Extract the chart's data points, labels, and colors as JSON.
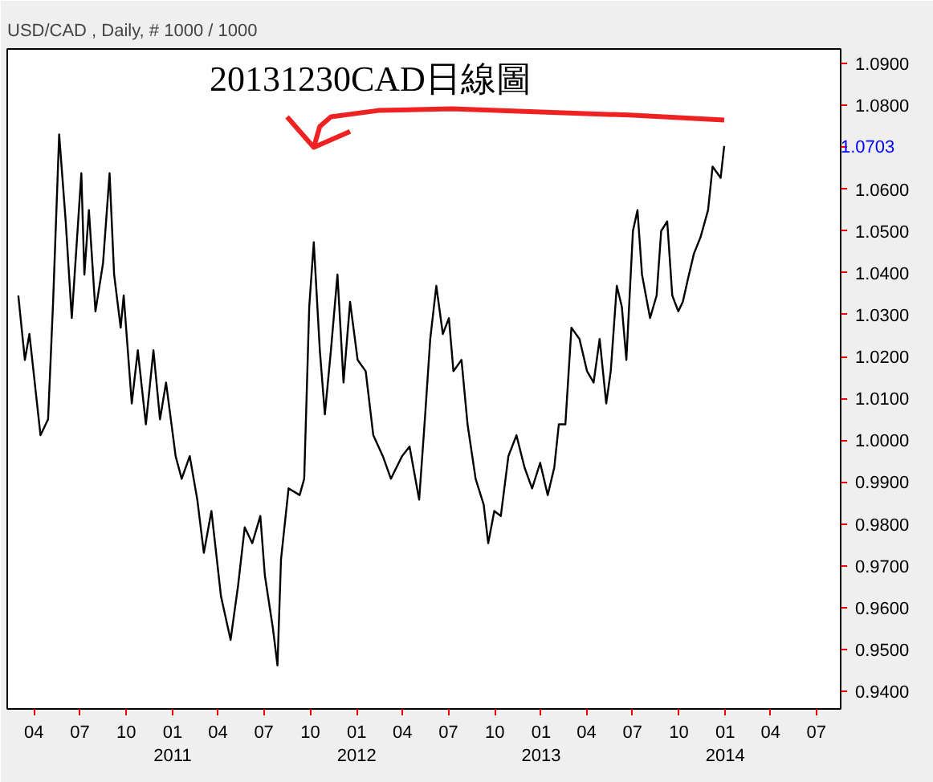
{
  "chart_data": {
    "type": "line",
    "title": "USD/CAD , Daily, # 1000 / 1000",
    "annotations": [
      "20131230CAD日線圖",
      "1.0703"
    ],
    "series": [
      {
        "color": "#000000",
        "x": [
          "2010-03-01",
          "2010-03-14",
          "2010-03-23",
          "2010-04-14",
          "2010-04-29",
          "2010-05-09",
          "2010-05-21",
          "2010-06-03",
          "2010-06-15",
          "2010-07-04",
          "2010-07-10",
          "2010-07-19",
          "2010-08-01",
          "2010-08-16",
          "2010-08-29",
          "2010-09-07",
          "2010-09-20",
          "2010-09-26",
          "2010-10-12",
          "2010-10-24",
          "2010-11-09",
          "2010-11-24",
          "2010-12-07",
          "2010-12-19",
          "2011-01-07",
          "2011-01-19",
          "2011-02-04",
          "2011-02-19",
          "2011-03-04",
          "2011-03-19",
          "2011-04-07",
          "2011-04-26",
          "2011-05-11",
          "2011-05-24",
          "2011-06-08",
          "2011-06-24",
          "2011-07-03",
          "2011-07-19",
          "2011-07-28",
          "2011-08-04",
          "2011-08-19",
          "2011-09-10",
          "2011-09-19",
          "2011-09-29",
          "2011-10-08",
          "2011-10-20",
          "2011-10-30",
          "2011-11-11",
          "2011-11-24",
          "2011-12-06",
          "2011-12-19",
          "2012-01-03",
          "2012-01-19",
          "2012-02-03",
          "2012-02-22",
          "2012-03-09",
          "2012-03-31",
          "2012-04-15",
          "2012-05-04",
          "2012-05-16",
          "2012-05-26",
          "2012-06-07",
          "2012-06-20",
          "2012-07-02",
          "2012-07-11",
          "2012-07-27",
          "2012-08-08",
          "2012-08-24",
          "2012-09-09",
          "2012-09-18",
          "2012-09-30",
          "2012-10-13",
          "2012-10-28",
          "2012-11-13",
          "2012-11-29",
          "2012-12-14",
          "2012-12-30",
          "2013-01-14",
          "2013-01-27",
          "2013-02-05",
          "2013-02-18",
          "2013-03-02",
          "2013-03-18",
          "2013-04-02",
          "2013-04-15",
          "2013-04-27",
          "2013-05-10",
          "2013-05-19",
          "2013-05-31",
          "2013-06-10",
          "2013-06-19",
          "2013-07-02",
          "2013-07-11",
          "2013-07-20",
          "2013-08-05",
          "2013-08-18",
          "2013-08-27",
          "2013-09-08",
          "2013-09-18",
          "2013-09-30",
          "2013-10-09",
          "2013-10-19",
          "2013-10-31",
          "2013-11-13",
          "2013-11-28",
          "2013-12-07",
          "2013-12-23",
          "2013-12-30"
        ],
        "values": [
          1.0346,
          1.0192,
          1.0254,
          1.0012,
          1.005,
          1.0331,
          1.0731,
          1.0523,
          1.0292,
          1.0638,
          1.0396,
          1.055,
          1.0308,
          1.0423,
          1.0638,
          1.0396,
          1.0269,
          1.0346,
          1.0088,
          1.0215,
          1.0038,
          1.0215,
          1.005,
          1.0138,
          0.9962,
          0.9908,
          0.9962,
          0.9858,
          0.9731,
          0.9831,
          0.9627,
          0.9523,
          0.9654,
          0.9792,
          0.9754,
          0.9819,
          0.9677,
          0.955,
          0.9462,
          0.9715,
          0.9885,
          0.9869,
          0.9908,
          1.0319,
          1.0473,
          1.0215,
          1.0062,
          1.0215,
          1.0396,
          1.0138,
          1.0331,
          1.0192,
          1.0165,
          1.0012,
          0.9962,
          0.9908,
          0.9962,
          0.9985,
          0.9858,
          1.0062,
          1.0242,
          1.0369,
          1.0254,
          1.0292,
          1.0165,
          1.0192,
          1.0038,
          0.9908,
          0.9846,
          0.9754,
          0.9831,
          0.9819,
          0.9962,
          1.0012,
          0.9935,
          0.9885,
          0.9946,
          0.9869,
          0.9935,
          1.0038,
          1.0038,
          1.0269,
          1.0242,
          1.0165,
          1.0138,
          1.0242,
          1.0088,
          1.0165,
          1.0369,
          1.0319,
          1.0192,
          1.05,
          1.055,
          1.0396,
          1.0292,
          1.0346,
          1.05,
          1.0523,
          1.0346,
          1.0308,
          1.0331,
          1.0385,
          1.0446,
          1.0485,
          1.055,
          1.0654,
          1.0627,
          1.0703
        ]
      },
      {
        "color": "#ee2222",
        "x": [
          "2011-10-08",
          "2011-10-20",
          "2011-11-11",
          "2012-02-13",
          "2012-07-08",
          "2012-12-20",
          "2013-06-25",
          "2013-12-30"
        ],
        "values": [
          1.07,
          1.075,
          1.0773,
          1.0788,
          1.0792,
          1.0785,
          1.0777,
          1.0765
        ]
      },
      {
        "color": "#ee2222",
        "x": [
          "2011-08-16",
          "2011-10-08",
          "2011-12-19"
        ],
        "values": [
          1.0773,
          1.07,
          1.0738
        ]
      }
    ],
    "xlim": [
      "2010-02-07",
      "2014-08-18"
    ],
    "xticks": [
      {
        "value": "2010-04-01",
        "label": "04"
      },
      {
        "value": "2010-07-01",
        "label": "07"
      },
      {
        "value": "2010-10-01",
        "label": "10"
      },
      {
        "value": "2011-01-01",
        "label": "01\n2011"
      },
      {
        "value": "2011-04-01",
        "label": "04"
      },
      {
        "value": "2011-07-01",
        "label": "07"
      },
      {
        "value": "2011-10-01",
        "label": "10"
      },
      {
        "value": "2012-01-01",
        "label": "01\n2012"
      },
      {
        "value": "2012-04-01",
        "label": "04"
      },
      {
        "value": "2012-07-01",
        "label": "07"
      },
      {
        "value": "2012-10-01",
        "label": "10"
      },
      {
        "value": "2013-01-01",
        "label": "01\n2013"
      },
      {
        "value": "2013-04-01",
        "label": "04"
      },
      {
        "value": "2013-07-01",
        "label": "07"
      },
      {
        "value": "2013-10-01",
        "label": "10"
      },
      {
        "value": "2014-01-01",
        "label": "01\n2014"
      },
      {
        "value": "2014-04-01",
        "label": "04"
      },
      {
        "value": "2014-07-01",
        "label": "07"
      }
    ],
    "ylim": [
      0.9358,
      1.0935
    ],
    "yticks": [
      {
        "value": 0.94,
        "label": "0.9400"
      },
      {
        "value": 0.95,
        "label": "0.9500"
      },
      {
        "value": 0.96,
        "label": "0.9600"
      },
      {
        "value": 0.97,
        "label": "0.9700"
      },
      {
        "value": 0.98,
        "label": "0.9800"
      },
      {
        "value": 0.99,
        "label": "0.9900"
      },
      {
        "value": 1.0,
        "label": "1.0000"
      },
      {
        "value": 1.01,
        "label": "1.0100"
      },
      {
        "value": 1.02,
        "label": "1.0200"
      },
      {
        "value": 1.03,
        "label": "1.0300"
      },
      {
        "value": 1.04,
        "label": "1.0400"
      },
      {
        "value": 1.05,
        "label": "1.0500"
      },
      {
        "value": 1.06,
        "label": "1.0600"
      },
      {
        "value": 1.07,
        "label": null
      },
      {
        "value": 1.08,
        "label": "1.0800"
      },
      {
        "value": 1.09,
        "label": "1.0900"
      }
    ],
    "grid": false,
    "marker": "none",
    "line_style": "solid"
  }
}
